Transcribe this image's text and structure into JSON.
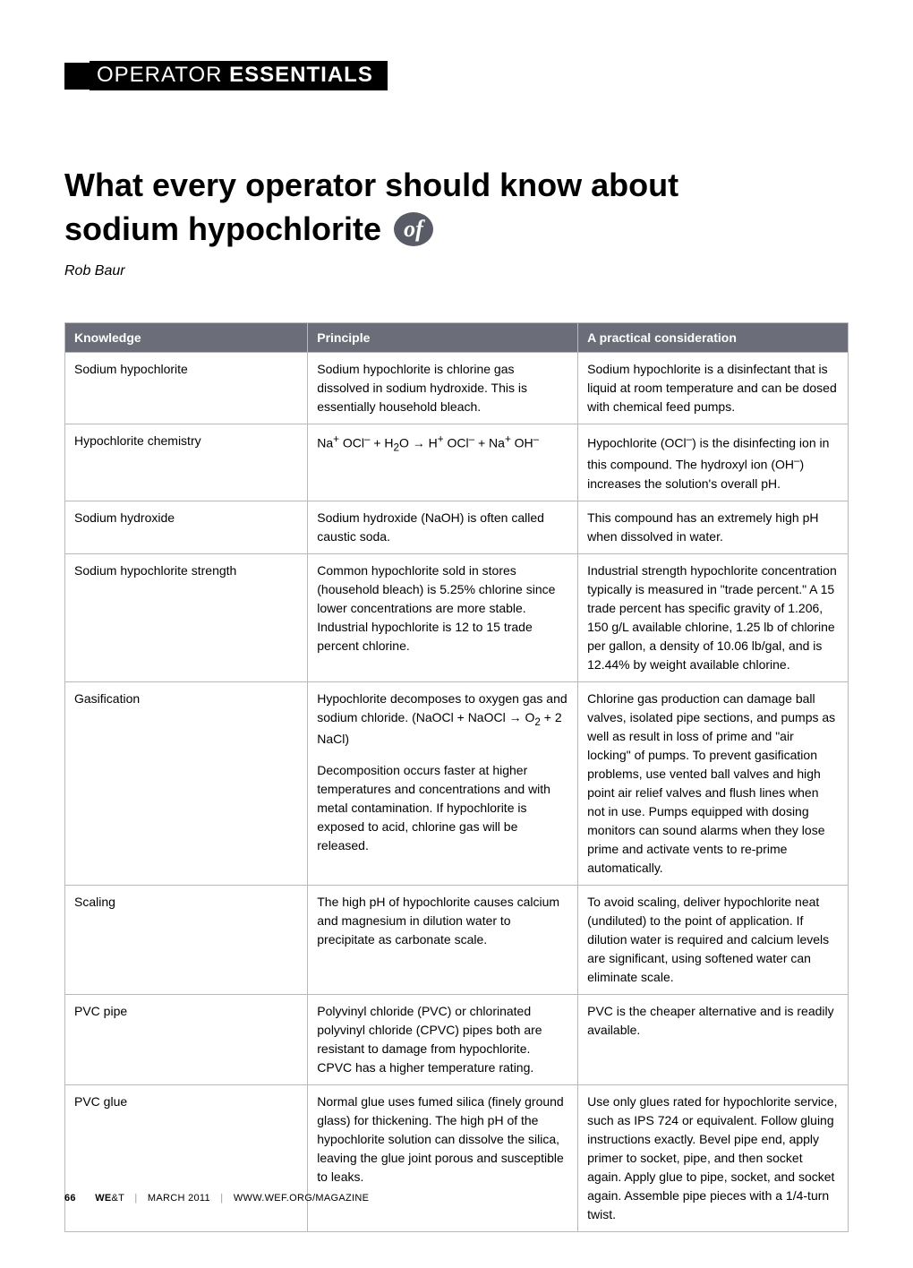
{
  "section": {
    "thin": "OPERATOR",
    "bold": "ESSENTIALS"
  },
  "article": {
    "title_line1": "What every operator should know about",
    "title_line2": "sodium hypochlorite",
    "author": "Rob Baur"
  },
  "table": {
    "headers": [
      "Knowledge",
      "Principle",
      "A practical consideration"
    ],
    "rows": [
      {
        "knowledge": "Sodium hypochlorite",
        "principle": "Sodium hypochlorite is chlorine gas dissolved in sodium hydroxide. This is essentially household bleach.",
        "practical": "Sodium hypochlorite is a disinfectant that is liquid at room temperature and can be dosed with chemical feed pumps."
      },
      {
        "knowledge": "Hypochlorite chemistry",
        "principle_html": "Na<sup>+</sup> OCl<sup>–</sup> + H<sub>2</sub>O → H<sup>+</sup> OCl<sup>–</sup> + Na<sup>+</sup> OH<sup>–</sup>",
        "practical_html": "Hypochlorite (OCl<sup>–</sup>) is the disinfecting ion in this compound. The hydroxyl ion (OH<sup>–</sup>) increases the solution's overall pH."
      },
      {
        "knowledge": "Sodium hydroxide",
        "principle": "Sodium hydroxide (NaOH) is often called caustic soda.",
        "practical": "This compound has an extremely high pH when dissolved in water."
      },
      {
        "knowledge": "Sodium hypochlorite strength",
        "principle": "Common hypochlorite sold in stores (household bleach) is 5.25% chlorine since lower concentrations are more stable. Industrial hypochlorite is 12 to 15 trade percent chlorine.",
        "practical": "Industrial strength hypochlorite concentration typically is measured in \"trade percent.\" A 15 trade percent has specific gravity of 1.206, 150 g/L available chlorine, 1.25 lb of chlorine per gallon, a density of 10.06 lb/gal, and is 12.44% by weight available chlorine."
      },
      {
        "knowledge": "Gasification",
        "principle_html": "Hypochlorite decomposes to oxygen gas and sodium chloride. (NaOCl + NaOCl → O<sub>2</sub> + 2 NaCl)<span class=\"para-gap\"></span>Decomposition occurs faster at higher temperatures and concentrations and with metal contamination. If hypochlorite is exposed to acid, chlorine gas will be released.",
        "practical": "Chlorine gas production can damage ball valves, isolated pipe sections, and pumps as well as result in loss of prime and \"air locking\" of pumps. To prevent gasification problems, use vented ball valves and high point air relief valves and flush lines when not in use. Pumps equipped with dosing monitors can sound alarms when they lose prime and activate vents to re-prime automatically."
      },
      {
        "knowledge": "Scaling",
        "principle": "The high pH of hypochlorite causes calcium and magnesium in dilution water to precipitate as carbonate scale.",
        "practical": "To avoid scaling, deliver hypochlorite neat (undiluted) to the point of application. If dilution water is required and calcium levels are significant, using softened water can eliminate scale."
      },
      {
        "knowledge": "PVC pipe",
        "principle": "Polyvinyl chloride (PVC) or chlorinated polyvinyl chloride (CPVC) pipes both are resistant to damage from hypochlorite. CPVC has a higher temperature rating.",
        "practical": "PVC is the cheaper alternative and is readily available."
      },
      {
        "knowledge": "PVC glue",
        "principle": "Normal glue uses fumed silica (finely ground glass) for thickening. The high pH of the hypochlorite solution can dissolve the silica, leaving the glue joint porous and susceptible to leaks.",
        "practical": "Use only glues rated for hypochlorite service, such as IPS 724 or equivalent. Follow gluing instructions exactly. Bevel pipe end, apply primer to socket, pipe, and then socket again. Apply glue to pipe, socket, and socket again. Assemble pipe pieces with a 1/4-turn twist."
      }
    ]
  },
  "footer": {
    "page_number": "66",
    "magazine_prefix": "WE",
    "magazine_amp": "&",
    "magazine_suffix": "T",
    "issue": "MARCH 2011",
    "url": "WWW.WEF.ORG/MAGAZINE"
  },
  "colors": {
    "header_bg": "#6b6e79",
    "border": "#b9b9b9",
    "badge_bg": "#595c66"
  }
}
